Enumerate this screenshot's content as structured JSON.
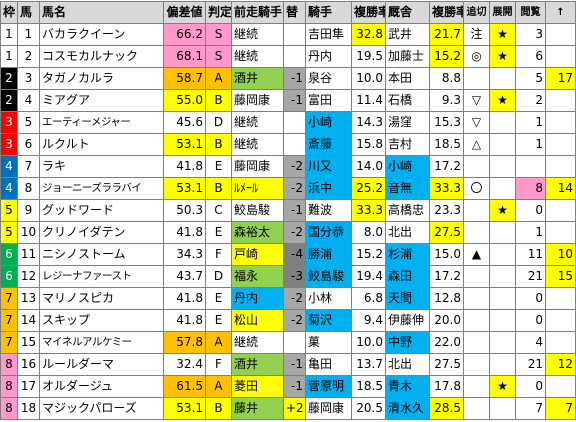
{
  "headers": [
    "枠",
    "馬",
    "馬名",
    "偏差値",
    "判定",
    "前走騎手",
    "替",
    "騎手",
    "複勝率",
    "厩舎",
    "複勝率",
    "追切",
    "展開",
    "閲覧",
    "↑"
  ],
  "colors": {
    "header_bg": "#d9d9d9",
    "pink": "#ff99cc",
    "orange": "#ffc000",
    "green": "#92d050",
    "gray": "#a6a6a6",
    "cyan": "#00b0f0",
    "yellow": "#ffff00",
    "red": "#ff0000",
    "wine": "#c00000",
    "darkgray": "#808080",
    "blue": "#0070c0",
    "lightgreen": "#00b050"
  },
  "rows": [
    {
      "waku": "1",
      "uma": "1",
      "name": "バカラクイーン",
      "dev": "66.2",
      "grade": "S",
      "prev": "継続",
      "change": "",
      "jockey": "吉田隼",
      "jrate": "32.8",
      "stable": "武井",
      "srate": "21.7",
      "chase": "注",
      "tenkai": "★",
      "view": "3",
      "up": ""
    },
    {
      "waku": "1",
      "uma": "2",
      "name": "コスモカルナック",
      "dev": "68.1",
      "grade": "S",
      "prev": "継続",
      "change": "",
      "jockey": "丹内",
      "jrate": "19.5",
      "stable": "加藤士",
      "srate": "15.2",
      "chase": "◎",
      "tenkai": "★",
      "view": "6",
      "up": ""
    },
    {
      "waku": "2",
      "uma": "3",
      "name": "タガノカルラ",
      "dev": "58.7",
      "grade": "A",
      "prev": "酒井",
      "change": "-1",
      "jockey": "泉谷",
      "jrate": "10.0",
      "stable": "本田",
      "srate": "8.8",
      "chase": "",
      "tenkai": "",
      "view": "5",
      "up": "17"
    },
    {
      "waku": "2",
      "uma": "4",
      "name": "ミアグア",
      "dev": "55.0",
      "grade": "B",
      "prev": "藤岡康",
      "change": "-1",
      "jockey": "富田",
      "jrate": "11.4",
      "stable": "石橋",
      "srate": "9.3",
      "chase": "▽",
      "tenkai": "★",
      "view": "2",
      "up": ""
    },
    {
      "waku": "3",
      "uma": "5",
      "name": "エーティーメジャー",
      "dev": "45.6",
      "grade": "D",
      "prev": "継続",
      "change": "",
      "jockey": "小崎",
      "jrate": "14.3",
      "stable": "湯窪",
      "srate": "15.3",
      "chase": "▽",
      "tenkai": "",
      "view": "1",
      "up": ""
    },
    {
      "waku": "3",
      "uma": "6",
      "name": "ルクルト",
      "dev": "53.1",
      "grade": "B",
      "prev": "継続",
      "change": "",
      "jockey": "斎藤",
      "jrate": "15.8",
      "stable": "吉村",
      "srate": "18.5",
      "chase": "△",
      "tenkai": "",
      "view": "1",
      "up": ""
    },
    {
      "waku": "4",
      "uma": "7",
      "name": "ラキ",
      "dev": "41.8",
      "grade": "E",
      "prev": "藤岡康",
      "change": "-2",
      "jockey": "川又",
      "jrate": "14.0",
      "stable": "小崎",
      "srate": "17.2",
      "chase": "",
      "tenkai": "",
      "view": "",
      "up": ""
    },
    {
      "waku": "4",
      "uma": "8",
      "name": "ジョーニーズララバイ",
      "dev": "53.1",
      "grade": "B",
      "prev": "ﾙﾒｰﾙ",
      "change": "-2",
      "jockey": "浜中",
      "jrate": "25.2",
      "stable": "音無",
      "srate": "33.3",
      "chase": "〇",
      "tenkai": "",
      "view": "8",
      "up": "14"
    },
    {
      "waku": "5",
      "uma": "9",
      "name": "グッドワード",
      "dev": "50.3",
      "grade": "C",
      "prev": "鮫島駿",
      "change": "-1",
      "jockey": "難波",
      "jrate": "33.3",
      "stable": "高橋忠",
      "srate": "23.3",
      "chase": "",
      "tenkai": "★",
      "view": "0",
      "up": ""
    },
    {
      "waku": "5",
      "uma": "10",
      "name": "クリノイダテン",
      "dev": "41.8",
      "grade": "E",
      "prev": "森裕太",
      "change": "-2",
      "jockey": "国分恭",
      "jrate": "8.0",
      "stable": "北出",
      "srate": "27.5",
      "chase": "",
      "tenkai": "",
      "view": "1",
      "up": ""
    },
    {
      "waku": "6",
      "uma": "11",
      "name": "ニシノストーム",
      "dev": "34.3",
      "grade": "F",
      "prev": "戸崎",
      "change": "-4",
      "jockey": "勝浦",
      "jrate": "15.2",
      "stable": "杉浦",
      "srate": "15.0",
      "chase": "▲",
      "tenkai": "",
      "view": "11",
      "up": "10"
    },
    {
      "waku": "6",
      "uma": "12",
      "name": "レジーナファースト",
      "dev": "43.7",
      "grade": "D",
      "prev": "福永",
      "change": "-3",
      "jockey": "鮫島駿",
      "jrate": "19.4",
      "stable": "森田",
      "srate": "17.2",
      "chase": "",
      "tenkai": "",
      "view": "21",
      "up": "15"
    },
    {
      "waku": "7",
      "uma": "13",
      "name": "マリノスピカ",
      "dev": "41.8",
      "grade": "E",
      "prev": "丹内",
      "change": "-2",
      "jockey": "小林",
      "jrate": "6.8",
      "stable": "天間",
      "srate": "12.8",
      "chase": "",
      "tenkai": "",
      "view": "0",
      "up": ""
    },
    {
      "waku": "7",
      "uma": "14",
      "name": "スキップ",
      "dev": "41.8",
      "grade": "E",
      "prev": "松山",
      "change": "-2",
      "jockey": "菊沢",
      "jrate": "9.4",
      "stable": "伊藤伸",
      "srate": "20.0",
      "chase": "",
      "tenkai": "",
      "view": "0",
      "up": ""
    },
    {
      "waku": "7",
      "uma": "15",
      "name": "マイネルアルケミー",
      "dev": "57.8",
      "grade": "A",
      "prev": "継続",
      "change": "",
      "jockey": "菓",
      "jrate": "10.0",
      "stable": "中野",
      "srate": "22.0",
      "chase": "",
      "tenkai": "",
      "view": "4",
      "up": ""
    },
    {
      "waku": "8",
      "uma": "16",
      "name": "ルールダーマ",
      "dev": "32.4",
      "grade": "F",
      "prev": "酒井",
      "change": "-1",
      "jockey": "亀田",
      "jrate": "13.7",
      "stable": "北出",
      "srate": "27.5",
      "chase": "",
      "tenkai": "",
      "view": "21",
      "up": "12"
    },
    {
      "waku": "8",
      "uma": "17",
      "name": "オルダージュ",
      "dev": "61.5",
      "grade": "A",
      "prev": "菱田",
      "change": "-1",
      "jockey": "菅原明",
      "jrate": "18.5",
      "stable": "青木",
      "srate": "17.8",
      "chase": "",
      "tenkai": "★",
      "view": "0",
      "up": ""
    },
    {
      "waku": "8",
      "uma": "18",
      "name": "マジックパローズ",
      "dev": "53.1",
      "grade": "B",
      "prev": "藤井",
      "change": "+2",
      "jockey": "藤岡康",
      "jrate": "20.5",
      "stable": "清水久",
      "srate": "28.5",
      "chase": "",
      "tenkai": "",
      "view": "7",
      "up": "7"
    }
  ]
}
